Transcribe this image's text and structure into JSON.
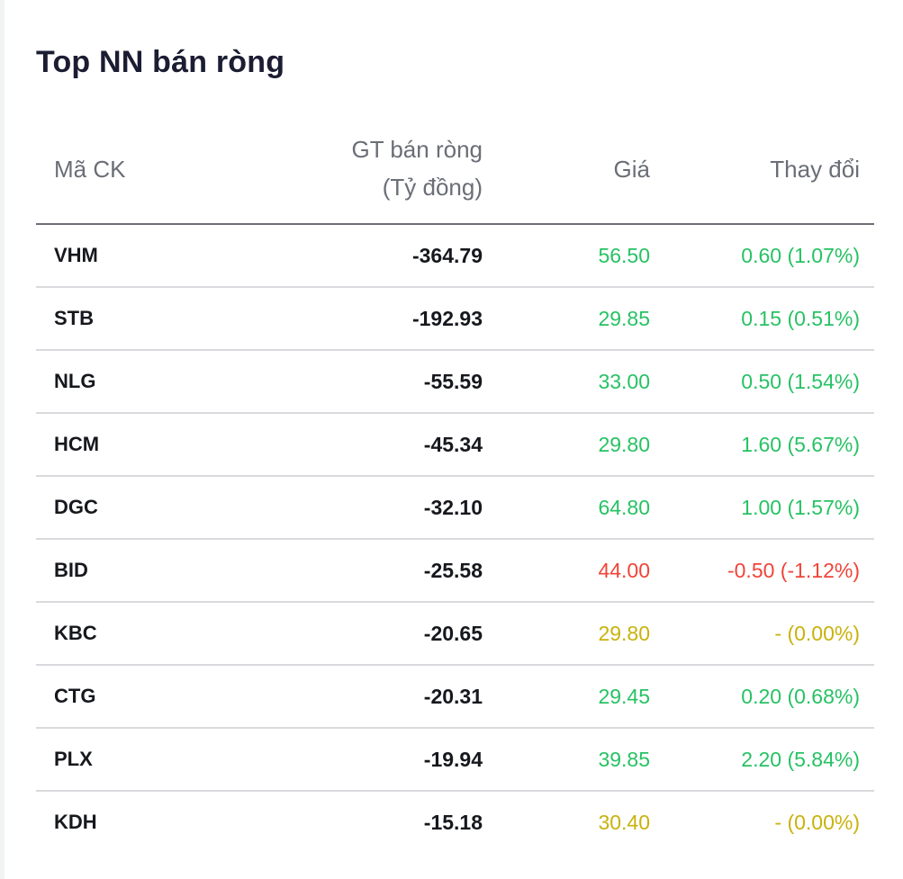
{
  "title": "Top NN bán ròng",
  "table": {
    "headers": {
      "code": "Mã CK",
      "value_line1": "GT bán ròng",
      "value_line2": "(Tỷ đồng)",
      "price": "Giá",
      "change": "Thay đổi"
    },
    "colors": {
      "up": "#27c264",
      "down": "#f04438",
      "reference": "#c9b20c"
    },
    "rows": [
      {
        "code": "VHM",
        "value": "-364.79",
        "price": "56.50",
        "change": "0.60 (1.07%)",
        "trend": "up"
      },
      {
        "code": "STB",
        "value": "-192.93",
        "price": "29.85",
        "change": "0.15 (0.51%)",
        "trend": "up"
      },
      {
        "code": "NLG",
        "value": "-55.59",
        "price": "33.00",
        "change": "0.50 (1.54%)",
        "trend": "up"
      },
      {
        "code": "HCM",
        "value": "-45.34",
        "price": "29.80",
        "change": "1.60 (5.67%)",
        "trend": "up"
      },
      {
        "code": "DGC",
        "value": "-32.10",
        "price": "64.80",
        "change": "1.00 (1.57%)",
        "trend": "up"
      },
      {
        "code": "BID",
        "value": "-25.58",
        "price": "44.00",
        "change": "-0.50 (-1.12%)",
        "trend": "down"
      },
      {
        "code": "KBC",
        "value": "-20.65",
        "price": "29.80",
        "change": "- (0.00%)",
        "trend": "ref"
      },
      {
        "code": "CTG",
        "value": "-20.31",
        "price": "29.45",
        "change": "0.20 (0.68%)",
        "trend": "up"
      },
      {
        "code": "PLX",
        "value": "-19.94",
        "price": "39.85",
        "change": "2.20 (5.84%)",
        "trend": "up"
      },
      {
        "code": "KDH",
        "value": "-15.18",
        "price": "30.40",
        "change": "- (0.00%)",
        "trend": "ref"
      }
    ]
  }
}
